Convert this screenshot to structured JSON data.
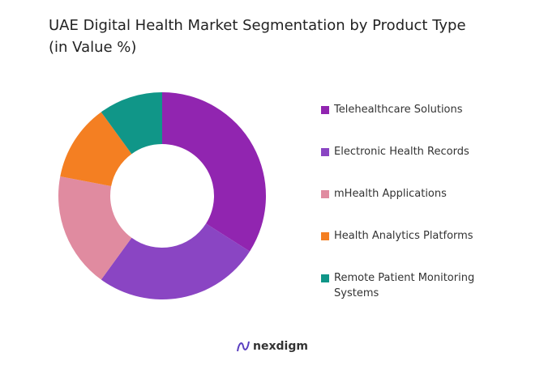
{
  "chart_data": {
    "type": "donut",
    "title": "UAE Digital Health Market Segmentation by Product Type (in Value %)",
    "categories": [
      "Telehealthcare Solutions",
      "Electronic Health Records",
      "mHealth Applications",
      "Health Analytics Platforms",
      "Remote Patient Monitoring Systems"
    ],
    "values": [
      34,
      26,
      18,
      12,
      10
    ],
    "colors": [
      "#9125b0",
      "#8a45c3",
      "#e08ba0",
      "#f47f22",
      "#109688"
    ],
    "brand": "nexdigm"
  }
}
